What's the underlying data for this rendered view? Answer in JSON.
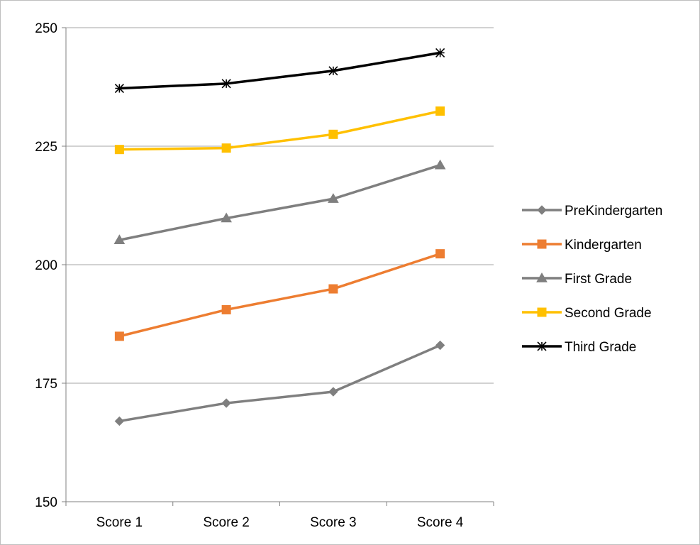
{
  "chart_data": {
    "type": "line",
    "categories": [
      "Score 1",
      "Score 2",
      "Score 3",
      "Score 4"
    ],
    "ylim": [
      150,
      250
    ],
    "yticks": [
      150,
      175,
      200,
      225,
      250
    ],
    "grid": "horizontal",
    "legend_position": "right",
    "series": [
      {
        "name": "PreKindergarten",
        "values": [
          167,
          170.8,
          173.2,
          183
        ],
        "color": "#7f7f7f",
        "marker": "diamond"
      },
      {
        "name": "Kindergarten",
        "values": [
          184.9,
          190.5,
          194.9,
          202.3
        ],
        "color": "#ed7d31",
        "marker": "square"
      },
      {
        "name": "First Grade",
        "values": [
          205.2,
          209.8,
          213.9,
          221
        ],
        "color": "#7f7f7f",
        "marker": "triangle"
      },
      {
        "name": "Second Grade",
        "values": [
          224.3,
          224.6,
          227.5,
          232.4
        ],
        "color": "#ffc000",
        "marker": "square"
      },
      {
        "name": "Third Grade",
        "values": [
          237.2,
          238.2,
          240.9,
          244.7
        ],
        "color": "#000000",
        "marker": "star"
      }
    ]
  }
}
